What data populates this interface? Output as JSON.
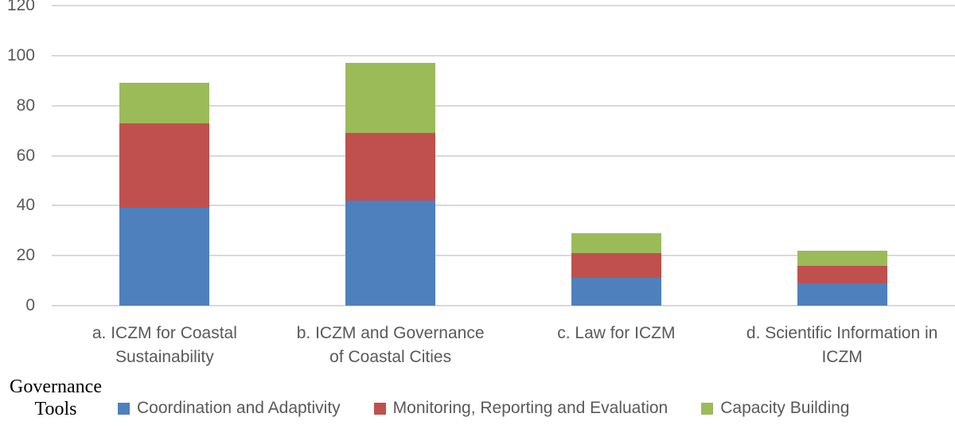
{
  "chart_data": {
    "type": "bar",
    "stacked": true,
    "title": "",
    "xlabel": "",
    "ylabel": "",
    "ylim": [
      0,
      120
    ],
    "yticks": [
      0,
      20,
      40,
      60,
      80,
      100,
      120
    ],
    "grid": true,
    "legend_position": "bottom",
    "axis_title": {
      "lines": [
        "Governance",
        "Tools"
      ]
    },
    "categories": [
      {
        "key": "a",
        "label": "a. ICZM for Coastal Sustainability",
        "lines": [
          "a. ICZM for Coastal",
          "Sustainability"
        ]
      },
      {
        "key": "b",
        "label": "b. ICZM and Governance of Coastal Cities",
        "lines": [
          "b. ICZM and Governance",
          "of Coastal Cities"
        ]
      },
      {
        "key": "c",
        "label": "c. Law for ICZM",
        "lines": [
          "c. Law for ICZM"
        ]
      },
      {
        "key": "d",
        "label": "d. Scientific Information in ICZM",
        "lines": [
          "d. Scientific Information in",
          "ICZM"
        ]
      }
    ],
    "series": [
      {
        "name": "Coordination and Adaptivity",
        "color": "#4E80BD",
        "values": [
          39,
          42,
          11,
          9
        ]
      },
      {
        "name": "Monitoring, Reporting and Evaluation",
        "color": "#C0504D",
        "values": [
          34,
          27,
          10,
          7
        ]
      },
      {
        "name": "Capacity Building",
        "color": "#9BBB59",
        "values": [
          16,
          28,
          8,
          6
        ]
      }
    ],
    "stack_totals": [
      89,
      97,
      29,
      22
    ]
  },
  "colors": {
    "background": "#ffffff",
    "gridline": "#d9d9d9",
    "axis_text": "#595959",
    "legend_text": "#595959",
    "axis_title_text": "#000000"
  }
}
